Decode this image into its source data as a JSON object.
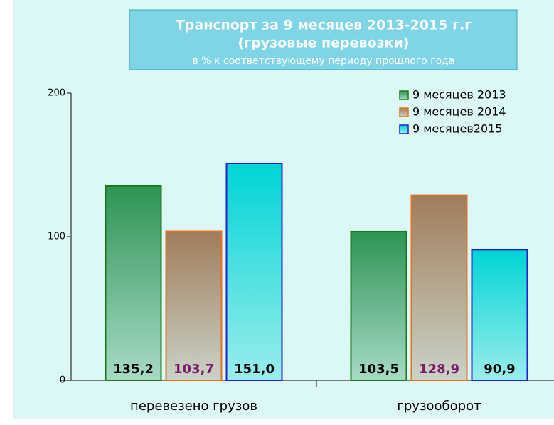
{
  "chart_data": {
    "type": "bar",
    "title_lines": [
      "Транспорт  за 9 месяцев 2013-2015 г.г",
      "(грузовые перевозки)"
    ],
    "subtitle": "в % к соответствующему периоду прошлого года",
    "categories": [
      "перевезено грузов",
      "грузооборот"
    ],
    "series": [
      {
        "name": "9 месяцев  2013",
        "color": "#2e9455",
        "border": "#1a7a1a",
        "label_color": "#000000",
        "values": [
          135.2,
          103.5
        ],
        "value_labels": [
          "135,2",
          "103,5"
        ]
      },
      {
        "name": "9 месяцев 2014",
        "color": "#a07c5a",
        "border": "#e87020",
        "label_color": "#7a1a6a",
        "values": [
          103.7,
          128.9
        ],
        "value_labels": [
          "103,7",
          "128,9"
        ]
      },
      {
        "name": "9 месяцев2015",
        "color": "#00d4d4",
        "border": "#2020d0",
        "label_color": "#000000",
        "values": [
          151.0,
          90.9
        ],
        "value_labels": [
          "151,0",
          "90,9"
        ]
      }
    ],
    "ylim": [
      0,
      200
    ],
    "yticks": [
      0,
      100,
      200
    ],
    "grid": false,
    "legend": "top-right"
  }
}
